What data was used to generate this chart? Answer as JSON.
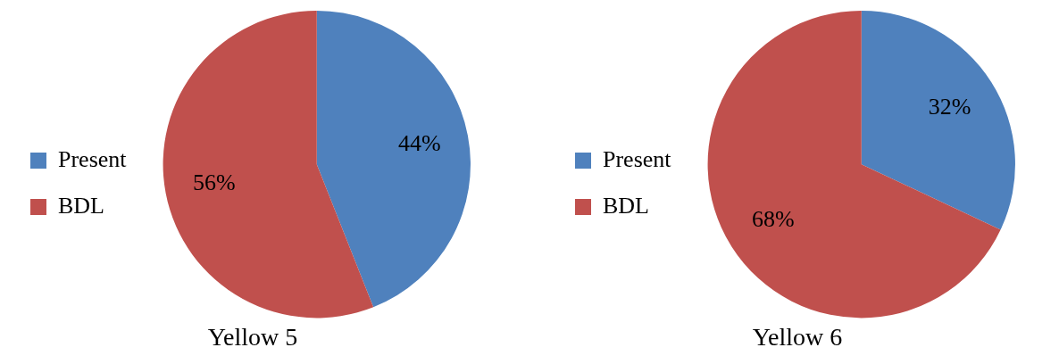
{
  "chart_data": [
    {
      "type": "pie",
      "title": "Yellow 5",
      "categories": [
        "Present",
        "BDL"
      ],
      "values": [
        44,
        56
      ],
      "colors": [
        "#4f81bd",
        "#c0504d"
      ],
      "value_labels": [
        "44%",
        "56%"
      ],
      "legend": "left"
    },
    {
      "type": "pie",
      "title": "Yellow 6",
      "categories": [
        "Present",
        "BDL"
      ],
      "values": [
        32,
        68
      ],
      "colors": [
        "#4f81bd",
        "#c0504d"
      ],
      "value_labels": [
        "32%",
        "68%"
      ],
      "legend": "left"
    }
  ]
}
